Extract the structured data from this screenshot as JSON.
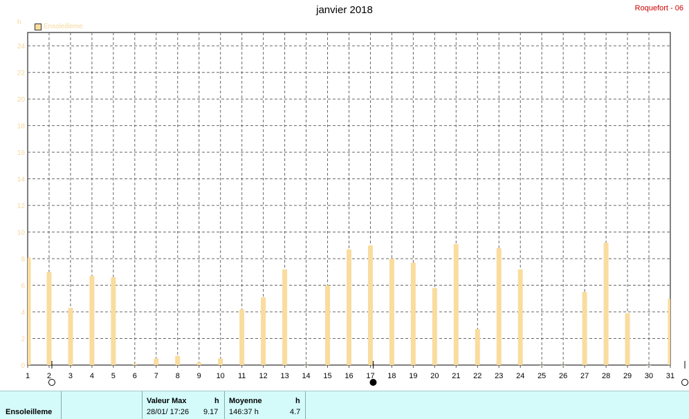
{
  "header": {
    "title": "janvier 2018",
    "station": "Roquefort - 06"
  },
  "chart_data": {
    "type": "bar",
    "unit_label": "h",
    "legend": [
      "Ensoleilleme"
    ],
    "series_color": "#f9dc9e",
    "ylim": [
      0,
      25
    ],
    "yticks": [
      0,
      2,
      4,
      6,
      8,
      10,
      12,
      14,
      16,
      18,
      20,
      22,
      24
    ],
    "categories": [
      "1",
      "2",
      "3",
      "4",
      "5",
      "6",
      "7",
      "8",
      "9",
      "10",
      "11",
      "12",
      "13",
      "14",
      "15",
      "16",
      "17",
      "18",
      "19",
      "20",
      "21",
      "22",
      "23",
      "24",
      "25",
      "26",
      "27",
      "28",
      "29",
      "30",
      "31"
    ],
    "series": [
      {
        "name": "Ensoleilleme",
        "values": [
          8.1,
          7.0,
          4.3,
          6.7,
          6.6,
          0.1,
          0.5,
          0.7,
          0.2,
          0.5,
          4.2,
          5.1,
          7.2,
          0.0,
          6.0,
          8.7,
          9.0,
          8.0,
          7.7,
          5.8,
          9.1,
          2.7,
          8.8,
          7.2,
          0.0,
          0.0,
          5.5,
          9.2,
          3.9,
          0.0,
          5.0
        ]
      }
    ],
    "grid": true,
    "moon_phases": [
      {
        "day": 2,
        "phase": "full"
      },
      {
        "day": 17,
        "phase": "new"
      },
      {
        "day": 31,
        "phase": "full"
      }
    ]
  },
  "footer": {
    "param_label": "Ensoleilleme",
    "max_header": "Valeur Max",
    "max_unit": "h",
    "max_date": "28/01/  17:26",
    "max_value": "9.17",
    "avg_header": "Moyenne",
    "avg_unit": "h",
    "avg_total": "146:37 h",
    "avg_value": "4.7"
  }
}
